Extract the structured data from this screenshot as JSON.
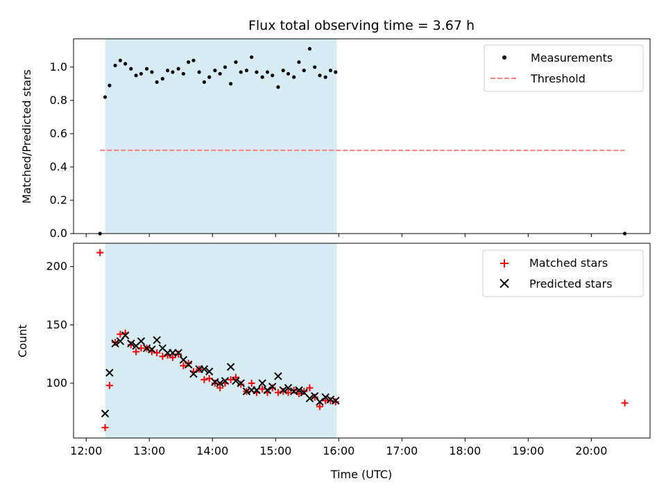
{
  "chart_data": {
    "title": "Flux total observing time = 3.67 h",
    "xlabel": "Time (UTC)",
    "x_ticks": [
      "12:00",
      "13:00",
      "14:00",
      "15:00",
      "16:00",
      "17:00",
      "18:00",
      "19:00",
      "20:00"
    ],
    "x_range_hours": [
      11.8,
      20.93
    ],
    "observing_window_hours": [
      12.3,
      15.97
    ],
    "colors": {
      "window": "#add8e6",
      "threshold": "#ff7f7f",
      "matched": "#ff0000",
      "predicted": "#000000",
      "measurement": "#000000"
    },
    "top": {
      "type": "scatter",
      "ylabel": "Matched/Predicted stars",
      "ylim": [
        0,
        1.17
      ],
      "y_ticks": [
        "0.0",
        "0.2",
        "0.4",
        "0.6",
        "0.8",
        "1.0"
      ],
      "y_tick_values": [
        0,
        0.2,
        0.4,
        0.6,
        0.8,
        1.0
      ],
      "threshold": {
        "value": 0.5,
        "x": [
          12.22,
          20.53
        ]
      },
      "legend": {
        "measurements": "Measurements",
        "threshold": "Threshold"
      },
      "series": [
        {
          "name": "Measurements",
          "x": [
            12.22,
            12.3,
            12.37,
            12.46,
            12.54,
            12.62,
            12.71,
            12.79,
            12.87,
            12.96,
            13.04,
            13.12,
            13.21,
            13.29,
            13.37,
            13.46,
            13.54,
            13.62,
            13.7,
            13.79,
            13.87,
            13.95,
            14.04,
            14.12,
            14.2,
            14.29,
            14.37,
            14.45,
            14.54,
            14.62,
            14.7,
            14.79,
            14.87,
            14.95,
            15.04,
            15.12,
            15.2,
            15.29,
            15.37,
            15.45,
            15.54,
            15.62,
            15.7,
            15.79,
            15.87,
            15.95,
            20.53
          ],
          "y": [
            0,
            0.82,
            0.89,
            1.01,
            1.04,
            1.02,
            0.99,
            0.95,
            0.96,
            0.99,
            0.97,
            0.91,
            0.93,
            0.98,
            0.97,
            0.99,
            0.96,
            1.03,
            1.04,
            0.97,
            0.91,
            0.94,
            0.98,
            0.96,
            1.0,
            0.9,
            1.03,
            0.97,
            0.98,
            1.06,
            0.97,
            0.94,
            0.97,
            0.95,
            0.88,
            0.98,
            0.96,
            0.94,
            1.03,
            0.98,
            1.11,
            1.0,
            0.95,
            0.94,
            0.98,
            0.97,
            0
          ]
        }
      ]
    },
    "bottom": {
      "type": "scatter",
      "ylabel": "Count",
      "ylim": [
        53,
        220
      ],
      "y_ticks": [
        "100",
        "150",
        "200"
      ],
      "y_tick_values": [
        100,
        150,
        200
      ],
      "legend": {
        "matched": "Matched stars",
        "predicted": "Predicted stars"
      },
      "series": [
        {
          "name": "Matched stars",
          "x": [
            12.22,
            12.3,
            12.37,
            12.46,
            12.54,
            12.62,
            12.71,
            12.79,
            12.87,
            12.96,
            13.04,
            13.12,
            13.21,
            13.29,
            13.37,
            13.46,
            13.54,
            13.62,
            13.7,
            13.79,
            13.87,
            13.95,
            14.04,
            14.12,
            14.2,
            14.29,
            14.37,
            14.45,
            14.54,
            14.62,
            14.7,
            14.79,
            14.87,
            14.95,
            15.04,
            15.12,
            15.2,
            15.29,
            15.37,
            15.45,
            15.54,
            15.62,
            15.7,
            15.79,
            15.87,
            15.95,
            20.53
          ],
          "y": [
            212,
            62,
            98,
            135,
            142,
            143,
            133,
            127,
            130,
            130,
            127,
            126,
            123,
            124,
            122,
            125,
            115,
            117,
            110,
            112,
            103,
            104,
            100,
            96,
            100,
            103,
            105,
            99,
            93,
            100,
            92,
            95,
            92,
            96,
            92,
            93,
            92,
            94,
            91,
            93,
            96,
            88,
            80,
            85,
            85,
            84,
            83
          ]
        },
        {
          "name": "Predicted stars",
          "x": [
            12.3,
            12.37,
            12.46,
            12.54,
            12.62,
            12.71,
            12.79,
            12.87,
            12.96,
            13.04,
            13.12,
            13.21,
            13.29,
            13.37,
            13.46,
            13.54,
            13.62,
            13.7,
            13.79,
            13.87,
            13.95,
            14.04,
            14.12,
            14.2,
            14.29,
            14.37,
            14.45,
            14.54,
            14.62,
            14.7,
            14.79,
            14.87,
            14.95,
            15.04,
            15.12,
            15.2,
            15.29,
            15.37,
            15.45,
            15.54,
            15.62,
            15.7,
            15.79,
            15.87,
            15.95
          ],
          "y": [
            74,
            109,
            134,
            136,
            141,
            134,
            132,
            136,
            130,
            129,
            137,
            130,
            126,
            126,
            126,
            120,
            116,
            108,
            112,
            112,
            110,
            101,
            100,
            102,
            114,
            102,
            100,
            93,
            94,
            94,
            100,
            94,
            97,
            106,
            94,
            96,
            93,
            94,
            92,
            87,
            89,
            84,
            88,
            86,
            85
          ]
        }
      ]
    }
  }
}
